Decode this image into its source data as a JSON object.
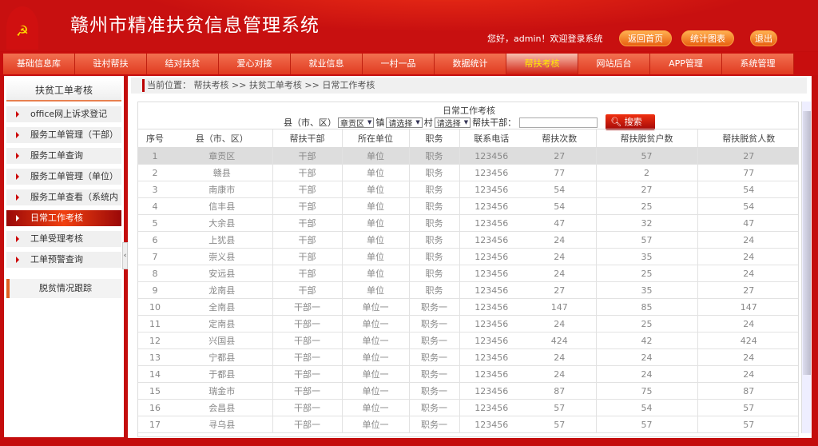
{
  "header": {
    "title": "赣州市精准扶贫信息管理系统",
    "welcome": "您好，admin！欢迎登录系统",
    "buttons": [
      "返回首页",
      "统计图表",
      "退出"
    ]
  },
  "nav": {
    "items": [
      "基础信息库",
      "驻村帮扶",
      "结对扶贫",
      "爱心对接",
      "就业信息",
      "一村一品",
      "数据统计",
      "帮扶考核",
      "网站后台",
      "APP管理",
      "系统管理"
    ],
    "active": "帮扶考核"
  },
  "sidebar": {
    "section_title": "扶贫工单考核",
    "items": [
      "office网上诉求登记",
      "服务工单管理（干部）",
      "服务工单查询",
      "服务工单管理（单位）",
      "服务工单查看（系统内",
      "日常工作考核",
      "工单受理考核",
      "工单预警查询"
    ],
    "active": "日常工作考核",
    "footer_section": "脱贫情况跟踪"
  },
  "breadcrumb": "当前位置： 帮扶考核 >> 扶贫工单考核 >> 日常工作考核",
  "panel": {
    "title": "日常工作考核",
    "filter": {
      "county_label": "县（市、区）",
      "county_value": "章贡区",
      "town_label": "镇",
      "town_value": "请选择",
      "village_label": "村",
      "village_value": "请选择",
      "cadre_label": "帮扶干部：",
      "cadre_value": "",
      "search_label": "搜索"
    },
    "columns": [
      "序号",
      "县（市、区）",
      "帮扶干部",
      "所在单位",
      "职务",
      "联系电话",
      "帮扶次数",
      "帮扶脱贫户数",
      "帮扶脱贫人数"
    ],
    "rows": [
      [
        "1",
        "章贡区",
        "干部",
        "单位",
        "职务",
        "123456",
        "27",
        "57",
        "27"
      ],
      [
        "2",
        "赣县",
        "干部",
        "单位",
        "职务",
        "123456",
        "77",
        "2",
        "77"
      ],
      [
        "3",
        "南康市",
        "干部",
        "单位",
        "职务",
        "123456",
        "54",
        "27",
        "54"
      ],
      [
        "4",
        "信丰县",
        "干部",
        "单位",
        "职务",
        "123456",
        "54",
        "25",
        "54"
      ],
      [
        "5",
        "大余县",
        "干部",
        "单位",
        "职务",
        "123456",
        "47",
        "32",
        "47"
      ],
      [
        "6",
        "上犹县",
        "干部",
        "单位",
        "职务",
        "123456",
        "24",
        "57",
        "24"
      ],
      [
        "7",
        "崇义县",
        "干部",
        "单位",
        "职务",
        "123456",
        "24",
        "35",
        "24"
      ],
      [
        "8",
        "安远县",
        "干部",
        "单位",
        "职务",
        "123456",
        "24",
        "25",
        "24"
      ],
      [
        "9",
        "龙南县",
        "干部",
        "单位",
        "职务",
        "123456",
        "27",
        "35",
        "27"
      ],
      [
        "10",
        "全南县",
        "干部一",
        "单位一",
        "职务一",
        "123456",
        "147",
        "85",
        "147"
      ],
      [
        "11",
        "定南县",
        "干部一",
        "单位一",
        "职务一",
        "123456",
        "24",
        "25",
        "24"
      ],
      [
        "12",
        "兴国县",
        "干部一",
        "单位一",
        "职务一",
        "123456",
        "424",
        "42",
        "424"
      ],
      [
        "13",
        "宁都县",
        "干部一",
        "单位一",
        "职务一",
        "123456",
        "24",
        "24",
        "24"
      ],
      [
        "14",
        "于都县",
        "干部一",
        "单位一",
        "职务一",
        "123456",
        "24",
        "24",
        "24"
      ],
      [
        "15",
        "瑞金市",
        "干部一",
        "单位一",
        "职务一",
        "123456",
        "87",
        "75",
        "87"
      ],
      [
        "16",
        "会昌县",
        "干部一",
        "单位一",
        "职务一",
        "123456",
        "57",
        "54",
        "57"
      ],
      [
        "17",
        "寻乌县",
        "干部一",
        "单位一",
        "职务一",
        "123456",
        "57",
        "57",
        "57"
      ]
    ],
    "selected_row": 1
  }
}
